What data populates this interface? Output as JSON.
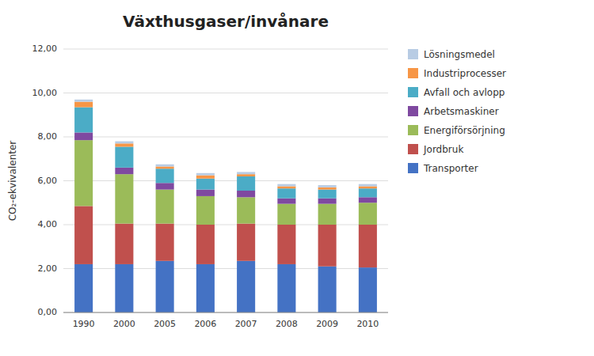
{
  "chart_data": {
    "type": "bar",
    "stacked": true,
    "title": "Växthusgaser/invånare",
    "ylabel": "CO₂-ekvivalenter",
    "categories": [
      "1990",
      "2000",
      "2005",
      "2006",
      "2007",
      "2008",
      "2009",
      "2010"
    ],
    "series": [
      {
        "name": "Transporter",
        "color": "#4472c4",
        "values": [
          2.2,
          2.2,
          2.35,
          2.2,
          2.35,
          2.2,
          2.1,
          2.05
        ]
      },
      {
        "name": "Jordbruk",
        "color": "#c0504d",
        "values": [
          2.65,
          1.85,
          1.7,
          1.8,
          1.7,
          1.8,
          1.9,
          1.95
        ]
      },
      {
        "name": "Energiförsörjning",
        "color": "#9bbb59",
        "values": [
          3.0,
          2.25,
          1.55,
          1.3,
          1.2,
          0.95,
          0.95,
          1.0
        ]
      },
      {
        "name": "Arbetsmaskiner",
        "color": "#7f49a0",
        "values": [
          0.35,
          0.3,
          0.3,
          0.3,
          0.3,
          0.25,
          0.25,
          0.25
        ]
      },
      {
        "name": "Avfall och avlopp",
        "color": "#4bacc6",
        "values": [
          1.15,
          0.95,
          0.65,
          0.5,
          0.65,
          0.45,
          0.4,
          0.4
        ]
      },
      {
        "name": "Industriprocesser",
        "color": "#f79646",
        "values": [
          0.25,
          0.15,
          0.1,
          0.15,
          0.1,
          0.1,
          0.1,
          0.1
        ]
      },
      {
        "name": "Lösningsmedel",
        "color": "#b8cce4",
        "values": [
          0.1,
          0.1,
          0.1,
          0.1,
          0.1,
          0.1,
          0.1,
          0.1
        ]
      }
    ],
    "ylim": [
      0,
      12
    ],
    "yticks": [
      {
        "value": 0,
        "label": "0,00"
      },
      {
        "value": 2,
        "label": "2,00"
      },
      {
        "value": 4,
        "label": "4,00"
      },
      {
        "value": 6,
        "label": "6,00"
      },
      {
        "value": 8,
        "label": "8,00"
      },
      {
        "value": 10,
        "label": "10,00"
      },
      {
        "value": 12,
        "label": "12,00"
      }
    ],
    "grid": true,
    "legend": "right"
  }
}
